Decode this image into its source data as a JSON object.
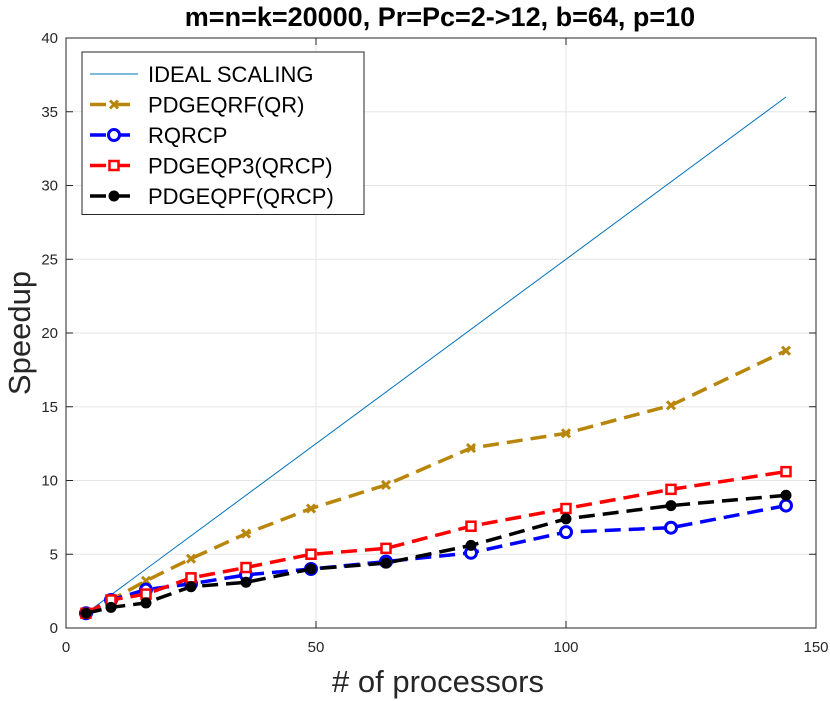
{
  "chart_data": {
    "type": "line",
    "title": "m=n=k=20000, Pr=Pc=2->12, b=64, p=10",
    "xlabel": "# of processors",
    "ylabel": "Speedup",
    "xlim": [
      0,
      150
    ],
    "ylim": [
      0,
      40
    ],
    "xticks": [
      0,
      50,
      100,
      150
    ],
    "yticks": [
      0,
      5,
      10,
      15,
      20,
      25,
      30,
      35,
      40
    ],
    "grid": true,
    "legend_position": "top-left",
    "x": [
      4,
      9,
      16,
      25,
      36,
      49,
      64,
      81,
      100,
      121,
      144
    ],
    "series": [
      {
        "name": "IDEAL SCALING",
        "color": "#0072BD",
        "style": "solid",
        "marker": "none",
        "x": [
          4,
          144
        ],
        "values": [
          1,
          36
        ]
      },
      {
        "name": "PDGEQRF(QR)",
        "color": "#B8860B",
        "style": "dashed",
        "marker": "x",
        "values": [
          1.0,
          1.9,
          3.2,
          4.7,
          6.4,
          8.1,
          9.7,
          12.2,
          13.2,
          15.1,
          18.8
        ]
      },
      {
        "name": "RQRCP",
        "color": "#0000FF",
        "style": "dashed",
        "marker": "circle",
        "values": [
          1.0,
          1.9,
          2.6,
          3.0,
          3.6,
          4.0,
          4.5,
          5.1,
          6.5,
          6.8,
          8.3
        ]
      },
      {
        "name": "PDGEQP3(QRCP)",
        "color": "#FF0000",
        "style": "dashed",
        "marker": "square",
        "values": [
          1.0,
          1.9,
          2.3,
          3.4,
          4.1,
          5.0,
          5.4,
          6.9,
          8.1,
          9.4,
          10.6
        ]
      },
      {
        "name": "PDGEQPF(QRCP)",
        "color": "#000000",
        "style": "dashed",
        "marker": "dot",
        "values": [
          1.0,
          1.4,
          1.7,
          2.8,
          3.1,
          4.0,
          4.4,
          5.6,
          7.4,
          8.3,
          9.0
        ]
      }
    ]
  }
}
